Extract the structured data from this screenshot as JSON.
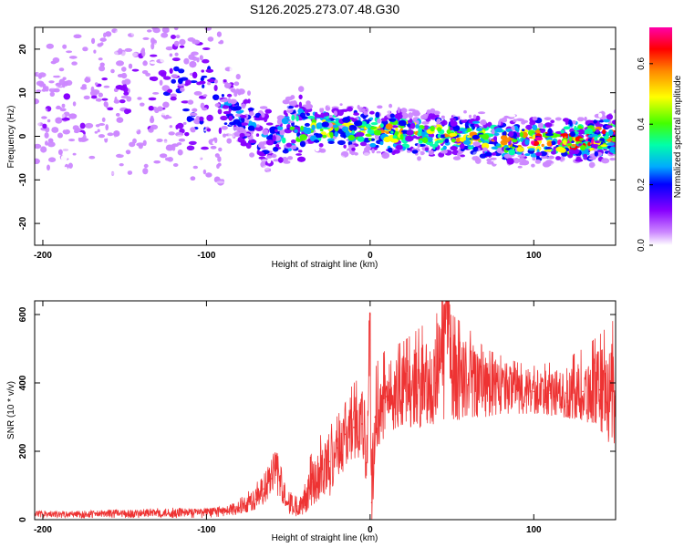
{
  "figure": {
    "title": "S126.2025.273.07.48.G30"
  },
  "chart_data": [
    {
      "type": "heatmap",
      "xlabel": "Height of straight line (km)",
      "ylabel": "Frequency (Hz)",
      "xlim": [
        -205,
        150
      ],
      "ylim": [
        -25,
        25
      ],
      "xticks": [
        -200,
        -100,
        0,
        100
      ],
      "yticks": [
        -20,
        -10,
        0,
        10,
        20
      ],
      "grid": false,
      "colorbar": {
        "label": "Normalized spectral amplitude",
        "range": [
          0.0,
          0.72
        ],
        "ticks": [
          0.0,
          0.2,
          0.4,
          0.6
        ],
        "colormap": [
          "#ffffff",
          "#cc88ff",
          "#8800ff",
          "#0000ff",
          "#00aaff",
          "#00ffaa",
          "#44ff00",
          "#ffff00",
          "#ff8800",
          "#ff0000",
          "#ff00aa"
        ]
      },
      "ridge": {
        "description_points_x": [
          -205,
          -150,
          -120,
          -90,
          -75,
          -60,
          -40,
          -20,
          0,
          20,
          40,
          60,
          80,
          100,
          120,
          150
        ],
        "center_freq": [
          5,
          9,
          12,
          8,
          3,
          -1,
          2,
          2,
          1,
          1,
          0,
          0,
          -1,
          -1,
          -1,
          0
        ],
        "peak_amplitude": [
          0.12,
          0.15,
          0.2,
          0.25,
          0.3,
          0.25,
          0.45,
          0.5,
          0.5,
          0.55,
          0.55,
          0.5,
          0.5,
          0.6,
          0.65,
          0.6
        ]
      }
    },
    {
      "type": "line",
      "xlabel": "Height of straight line (km)",
      "ylabel": "SNR (10 * v/v)",
      "xlim": [
        -205,
        150
      ],
      "ylim": [
        0,
        640
      ],
      "xticks": [
        -200,
        -100,
        0,
        100
      ],
      "yticks": [
        0,
        200,
        400,
        600
      ],
      "color": "#ee3333",
      "grid": false,
      "series": [
        {
          "x": [
            -205,
            -180,
            -150,
            -120,
            -100,
            -90,
            -80,
            -70,
            -65,
            -60,
            -57,
            -55,
            -50,
            -45,
            -40,
            -35,
            -30,
            -25,
            -20,
            -15,
            -10,
            -5,
            -2,
            0,
            1,
            3,
            5,
            10,
            20,
            30,
            40,
            48,
            50,
            60,
            70,
            80,
            90,
            100,
            110,
            120,
            130,
            140,
            150
          ],
          "values": [
            15,
            15,
            18,
            20,
            22,
            25,
            35,
            60,
            90,
            120,
            150,
            110,
            50,
            40,
            70,
            110,
            140,
            170,
            210,
            250,
            270,
            280,
            200,
            600,
            50,
            300,
            320,
            360,
            380,
            390,
            400,
            630,
            420,
            410,
            400,
            390,
            380,
            375,
            370,
            370,
            375,
            380,
            360
          ],
          "envelope_low": [
            5,
            5,
            5,
            5,
            5,
            10,
            15,
            30,
            50,
            60,
            80,
            40,
            20,
            20,
            30,
            50,
            70,
            100,
            120,
            150,
            170,
            180,
            100,
            20,
            20,
            200,
            220,
            250,
            280,
            290,
            300,
            290,
            300,
            300,
            300,
            310,
            310,
            310,
            310,
            300,
            290,
            280,
            200
          ],
          "envelope_high": [
            25,
            25,
            30,
            35,
            30,
            40,
            60,
            100,
            150,
            190,
            200,
            160,
            100,
            90,
            150,
            200,
            250,
            350,
            300,
            360,
            400,
            420,
            380,
            605,
            400,
            440,
            470,
            500,
            520,
            560,
            600,
            640,
            600,
            560,
            500,
            480,
            460,
            450,
            460,
            470,
            500,
            540,
            590
          ]
        }
      ]
    }
  ]
}
